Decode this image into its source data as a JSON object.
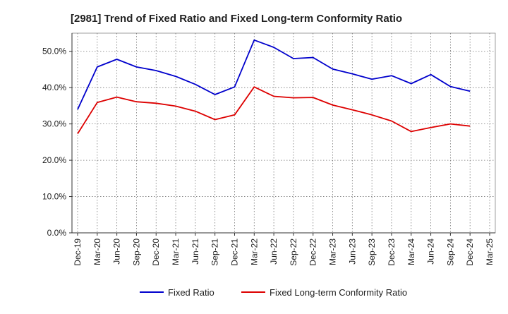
{
  "chart_data": {
    "type": "line",
    "title": "[2981]  Trend of Fixed Ratio and Fixed Long-term Conformity Ratio",
    "xlabel": "",
    "ylabel": "",
    "ylim": [
      0,
      55
    ],
    "yticks": [
      {
        "value": 0,
        "label": "0.0%"
      },
      {
        "value": 10,
        "label": "10.0%"
      },
      {
        "value": 20,
        "label": "20.0%"
      },
      {
        "value": 30,
        "label": "30.0%"
      },
      {
        "value": 40,
        "label": "40.0%"
      },
      {
        "value": 50,
        "label": "50.0%"
      }
    ],
    "x_tick_labels": [
      "Dec-19",
      "Mar-20",
      "Jun-20",
      "Sep-20",
      "Dec-20",
      "Mar-21",
      "Jun-21",
      "Sep-21",
      "Dec-21",
      "Mar-22",
      "Jun-22",
      "Sep-22",
      "Dec-22",
      "Mar-23",
      "Jun-23",
      "Sep-23",
      "Dec-23",
      "Mar-24",
      "Jun-24",
      "Sep-24",
      "Dec-24",
      "Mar-25"
    ],
    "categories": [
      "Dec-19",
      "Mar-20",
      "Jun-20",
      "Sep-20",
      "Dec-20",
      "Mar-21",
      "Jun-21",
      "Sep-21",
      "Dec-21",
      "Mar-22",
      "Jun-22",
      "Sep-22",
      "Dec-22",
      "Mar-23",
      "Jun-23",
      "Sep-23",
      "Dec-23",
      "Mar-24",
      "Jun-24",
      "Sep-24",
      "Dec-24"
    ],
    "grid": true,
    "legend_position": "bottom",
    "series": [
      {
        "name": "Fixed Ratio",
        "color": "#0000cc",
        "values": [
          34.0,
          45.7,
          47.8,
          45.7,
          44.7,
          43.1,
          40.9,
          38.1,
          40.2,
          53.1,
          51.1,
          48.0,
          48.3,
          45.1,
          43.8,
          42.3,
          43.3,
          41.1,
          43.6,
          40.3,
          39.0
        ]
      },
      {
        "name": "Fixed Long-term Conformity Ratio",
        "color": "#dd0000",
        "values": [
          27.3,
          35.9,
          37.4,
          36.1,
          35.7,
          34.9,
          33.5,
          31.2,
          32.5,
          40.2,
          37.6,
          37.2,
          37.3,
          35.2,
          33.9,
          32.5,
          30.8,
          27.9,
          29.0,
          30.0,
          29.4
        ]
      }
    ]
  }
}
